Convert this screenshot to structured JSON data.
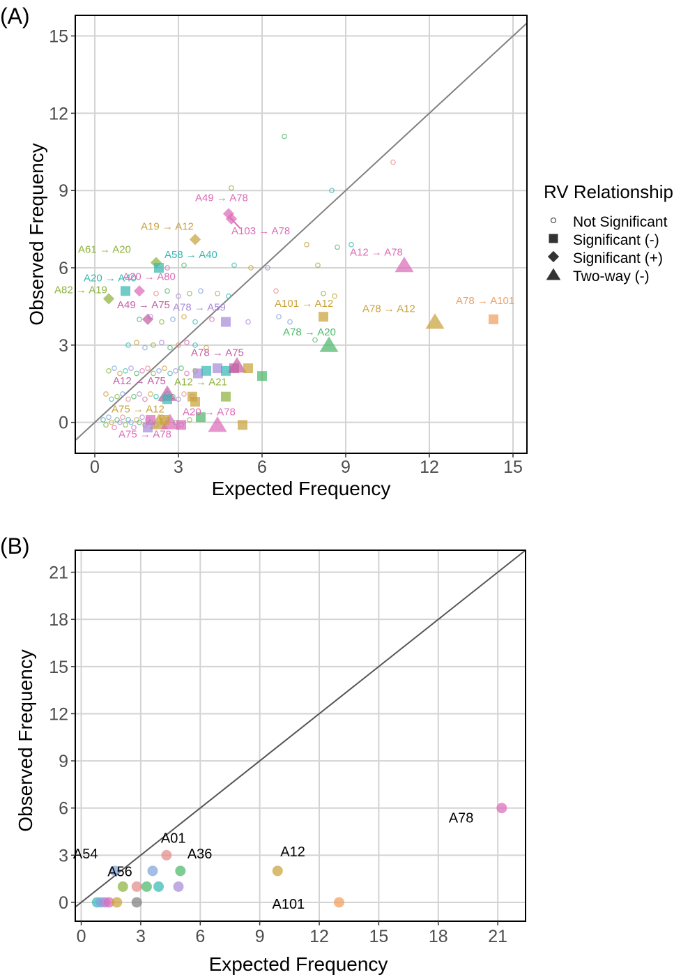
{
  "chart_data": [
    {
      "panel_tag": "(A)",
      "type": "scatter",
      "xlabel": "Expected Frequency",
      "ylabel": "Observed Frequency",
      "xlim": [
        -0.7,
        15.5
      ],
      "ylim": [
        -1.2,
        15.8
      ],
      "xticks": [
        0,
        3,
        6,
        9,
        12,
        15
      ],
      "yticks": [
        0,
        3,
        6,
        9,
        12,
        15
      ],
      "grid": true,
      "reference_line": "y = x",
      "legend": {
        "title": "RV Relationship",
        "position": "right",
        "entries": [
          {
            "label": "Not Significant",
            "shape": "open-circle"
          },
          {
            "label": "Significant (-)",
            "shape": "square"
          },
          {
            "label": "Significant (+)",
            "shape": "diamond"
          },
          {
            "label": "Two-way (-)",
            "shape": "triangle"
          }
        ]
      },
      "colors": [
        "#e58b8b",
        "#c9a23a",
        "#8db33c",
        "#4cb86a",
        "#37b8b3",
        "#7fa3dd",
        "#a98ad8",
        "#dd6bb8"
      ],
      "background_points": [
        [
          0.3,
          0.1,
          4
        ],
        [
          0.4,
          -0.1,
          2
        ],
        [
          0.5,
          0.2,
          5
        ],
        [
          0.6,
          0.0,
          1
        ],
        [
          0.7,
          -0.2,
          7
        ],
        [
          0.8,
          0.1,
          3
        ],
        [
          0.9,
          0.0,
          6
        ],
        [
          1.0,
          0.2,
          0
        ],
        [
          1.1,
          -0.1,
          2
        ],
        [
          1.2,
          0.1,
          4
        ],
        [
          1.3,
          0.0,
          5
        ],
        [
          1.4,
          -0.2,
          7
        ],
        [
          1.5,
          0.1,
          1
        ],
        [
          1.6,
          0.0,
          3
        ],
        [
          1.7,
          0.2,
          6
        ],
        [
          1.8,
          -0.1,
          0
        ],
        [
          1.9,
          0.1,
          2
        ],
        [
          2.0,
          0.0,
          4
        ],
        [
          2.2,
          -0.1,
          5
        ],
        [
          2.4,
          0.2,
          1
        ],
        [
          2.6,
          0.1,
          7
        ],
        [
          2.9,
          0.0,
          3
        ],
        [
          3.1,
          -0.1,
          6
        ],
        [
          3.4,
          0.1,
          2
        ],
        [
          0.4,
          1.1,
          1
        ],
        [
          0.6,
          0.9,
          4
        ],
        [
          0.8,
          1.0,
          2
        ],
        [
          1.0,
          1.1,
          5
        ],
        [
          1.2,
          0.9,
          0
        ],
        [
          1.4,
          1.0,
          3
        ],
        [
          1.6,
          1.1,
          6
        ],
        [
          1.8,
          0.9,
          7
        ],
        [
          2.0,
          1.1,
          1
        ],
        [
          2.2,
          1.0,
          4
        ],
        [
          2.4,
          0.9,
          2
        ],
        [
          2.6,
          1.1,
          5
        ],
        [
          2.8,
          1.0,
          3
        ],
        [
          3.0,
          0.9,
          6
        ],
        [
          3.2,
          1.1,
          0
        ],
        [
          3.5,
          1.0,
          7
        ],
        [
          0.5,
          2.0,
          2
        ],
        [
          0.7,
          2.1,
          5
        ],
        [
          0.9,
          1.9,
          1
        ],
        [
          1.1,
          2.0,
          4
        ],
        [
          1.3,
          2.1,
          6
        ],
        [
          1.5,
          1.9,
          3
        ],
        [
          1.7,
          2.0,
          7
        ],
        [
          1.9,
          2.1,
          0
        ],
        [
          2.1,
          1.9,
          2
        ],
        [
          2.3,
          2.0,
          5
        ],
        [
          2.5,
          2.1,
          1
        ],
        [
          2.7,
          1.9,
          4
        ],
        [
          2.9,
          2.0,
          6
        ],
        [
          3.1,
          2.1,
          3
        ],
        [
          3.3,
          1.9,
          7
        ],
        [
          3.6,
          2.0,
          2
        ],
        [
          1.2,
          3.0,
          4
        ],
        [
          1.5,
          3.1,
          1
        ],
        [
          1.8,
          2.9,
          5
        ],
        [
          2.1,
          3.0,
          2
        ],
        [
          2.4,
          3.1,
          6
        ],
        [
          2.7,
          2.9,
          3
        ],
        [
          3.0,
          3.0,
          0
        ],
        [
          3.3,
          3.1,
          7
        ],
        [
          3.6,
          3.0,
          4
        ],
        [
          4.0,
          2.9,
          1
        ],
        [
          1.6,
          4.0,
          3
        ],
        [
          2.0,
          4.1,
          6
        ],
        [
          2.4,
          3.9,
          2
        ],
        [
          2.8,
          4.0,
          5
        ],
        [
          3.2,
          4.1,
          1
        ],
        [
          3.6,
          3.9,
          4
        ],
        [
          4.2,
          4.0,
          7
        ],
        [
          2.2,
          5.0,
          0
        ],
        [
          2.6,
          5.1,
          3
        ],
        [
          3.0,
          4.9,
          6
        ],
        [
          3.4,
          5.0,
          2
        ],
        [
          3.8,
          5.1,
          5
        ],
        [
          4.4,
          5.0,
          1
        ],
        [
          4.8,
          4.9,
          4
        ],
        [
          2.6,
          6.0,
          7
        ],
        [
          3.2,
          6.1,
          3
        ],
        [
          5.0,
          6.1,
          4
        ],
        [
          5.6,
          6.0,
          1
        ],
        [
          6.2,
          6.0,
          6
        ],
        [
          6.6,
          4.1,
          5
        ],
        [
          4.9,
          9.1,
          2
        ],
        [
          6.8,
          11.1,
          3
        ],
        [
          10.7,
          10.1,
          0
        ],
        [
          8.5,
          9.0,
          4
        ],
        [
          8.0,
          6.1,
          2
        ],
        [
          7.6,
          6.9,
          1
        ],
        [
          8.7,
          6.8,
          3
        ],
        [
          9.2,
          6.9,
          4
        ],
        [
          6.5,
          5.1,
          0
        ],
        [
          8.2,
          5.0,
          2
        ],
        [
          8.6,
          4.9,
          1
        ],
        [
          7.0,
          3.9,
          5
        ],
        [
          7.9,
          3.2,
          3
        ],
        [
          5.5,
          3.9,
          6
        ]
      ],
      "series": [
        {
          "label": "A49 → A78",
          "x": 4.8,
          "y": 8.1,
          "shape": "diamond",
          "color": "#dd6bb8"
        },
        {
          "label": "A103 → A78",
          "x": 4.9,
          "y": 7.9,
          "shape": "diamond",
          "color": "#dd6bb8"
        },
        {
          "label": "A19 → A12",
          "x": 3.6,
          "y": 7.1,
          "shape": "diamond",
          "color": "#c9a23a"
        },
        {
          "label": "A61 → A20",
          "x": 2.2,
          "y": 6.2,
          "shape": "diamond",
          "color": "#8db33c"
        },
        {
          "label": "A58 → A40",
          "x": 2.3,
          "y": 6.0,
          "shape": "square",
          "color": "#37b8b3"
        },
        {
          "label": "A20 → A40",
          "x": 1.1,
          "y": 5.1,
          "shape": "square",
          "color": "#37b8b3"
        },
        {
          "label": "A20 → A80",
          "x": 1.6,
          "y": 5.1,
          "shape": "diamond",
          "color": "#dd6bb8"
        },
        {
          "label": "A82 → A19",
          "x": 0.5,
          "y": 4.8,
          "shape": "diamond",
          "color": "#8db33c"
        },
        {
          "label": "A49 → A75",
          "x": 1.9,
          "y": 4.0,
          "shape": "diamond",
          "color": "#c25fa5"
        },
        {
          "label": "A78 → A59",
          "x": 4.7,
          "y": 3.9,
          "shape": "square",
          "color": "#a98ad8"
        },
        {
          "label": "A12 → A78",
          "x": 11.1,
          "y": 6.1,
          "shape": "triangle",
          "color": "#dd6bb8"
        },
        {
          "label": "A101 → A12",
          "x": 8.2,
          "y": 4.1,
          "shape": "square",
          "color": "#c9a23a"
        },
        {
          "label": "A78 → A12",
          "x": 12.2,
          "y": 3.9,
          "shape": "triangle",
          "color": "#c9a23a"
        },
        {
          "label": "A78 → A101",
          "x": 14.3,
          "y": 4.0,
          "shape": "square",
          "color": "#f0a060"
        },
        {
          "label": "A78 → A20",
          "x": 8.4,
          "y": 3.0,
          "shape": "triangle",
          "color": "#4cb86a"
        },
        {
          "label": "A78 → A75",
          "x": 5.1,
          "y": 2.2,
          "shape": "triangle",
          "color": "#c25fa5"
        },
        {
          "label": "A12 → A21",
          "x": 4.7,
          "y": 1.0,
          "shape": "square",
          "color": "#8db33c"
        },
        {
          "label": "A12 → A75",
          "x": 2.6,
          "y": 1.1,
          "shape": "triangle",
          "color": "#c25fa5"
        },
        {
          "label": "A75 → A12",
          "x": 2.3,
          "y": 0.0,
          "shape": "triangle",
          "color": "#c9a23a"
        },
        {
          "label": "A20 → A78",
          "x": 4.4,
          "y": -0.1,
          "shape": "triangle",
          "color": "#dd6bb8"
        },
        {
          "label": "A75 → A78",
          "x": 2.7,
          "y": 0.0,
          "shape": "triangle",
          "color": "#dd6bb8"
        },
        {
          "label": "",
          "x": 3.7,
          "y": 1.9,
          "shape": "square",
          "color": "#a98ad8"
        },
        {
          "label": "",
          "x": 4.0,
          "y": 2.0,
          "shape": "square",
          "color": "#37b8b3"
        },
        {
          "label": "",
          "x": 4.4,
          "y": 2.1,
          "shape": "square",
          "color": "#a98ad8"
        },
        {
          "label": "",
          "x": 4.7,
          "y": 2.0,
          "shape": "square",
          "color": "#37b8b3"
        },
        {
          "label": "",
          "x": 5.0,
          "y": 2.1,
          "shape": "square",
          "color": "#c25fa5"
        },
        {
          "label": "",
          "x": 5.5,
          "y": 2.1,
          "shape": "square",
          "color": "#c9a23a"
        },
        {
          "label": "",
          "x": 6.0,
          "y": 1.8,
          "shape": "square",
          "color": "#4cb86a"
        },
        {
          "label": "",
          "x": 3.5,
          "y": 1.0,
          "shape": "square",
          "color": "#c9a23a"
        },
        {
          "label": "",
          "x": 2.6,
          "y": 0.9,
          "shape": "square",
          "color": "#37b8b3"
        },
        {
          "label": "",
          "x": 3.6,
          "y": 0.8,
          "shape": "square",
          "color": "#c9a23a"
        },
        {
          "label": "",
          "x": 3.8,
          "y": 0.2,
          "shape": "square",
          "color": "#4cb86a"
        },
        {
          "label": "",
          "x": 2.0,
          "y": 0.1,
          "shape": "square",
          "color": "#dd6bb8"
        },
        {
          "label": "",
          "x": 1.9,
          "y": -0.2,
          "shape": "square",
          "color": "#a98ad8"
        },
        {
          "label": "",
          "x": 3.1,
          "y": -0.1,
          "shape": "square",
          "color": "#dd6bb8"
        },
        {
          "label": "",
          "x": 5.3,
          "y": -0.1,
          "shape": "square",
          "color": "#c9a23a"
        },
        {
          "label": "",
          "x": 2.5,
          "y": 0.1,
          "shape": "square",
          "color": "#c9a23a"
        }
      ]
    },
    {
      "panel_tag": "(B)",
      "type": "scatter",
      "xlabel": "Expected Frequency",
      "ylabel": "Observed Frequency",
      "xlim": [
        -0.3,
        22.4
      ],
      "ylim": [
        -1.2,
        22.4
      ],
      "xticks": [
        0,
        3,
        6,
        9,
        12,
        15,
        18,
        21
      ],
      "yticks": [
        0,
        3,
        6,
        9,
        12,
        15,
        18,
        21
      ],
      "grid": true,
      "reference_line": "y = x",
      "points": [
        {
          "label": "A78",
          "x": 21.2,
          "y": 6.0,
          "color": "#dd6bb8"
        },
        {
          "label": "A12",
          "x": 9.9,
          "y": 2.0,
          "color": "#c9a23a"
        },
        {
          "label": "A101",
          "x": 13.0,
          "y": 0.0,
          "color": "#f0a060"
        },
        {
          "label": "A01",
          "x": 4.3,
          "y": 3.0,
          "color": "#e58b8b"
        },
        {
          "label": "A36",
          "x": 5.0,
          "y": 2.0,
          "color": "#4cb86a"
        },
        {
          "label": "A54",
          "x": 1.7,
          "y": 2.0,
          "color": "#7fa3dd"
        },
        {
          "label": "A56",
          "x": 2.8,
          "y": 1.0,
          "color": "#e58b8b"
        },
        {
          "label": "",
          "x": 3.6,
          "y": 2.0,
          "color": "#7fa3dd"
        },
        {
          "label": "",
          "x": 2.1,
          "y": 1.0,
          "color": "#8db33c"
        },
        {
          "label": "",
          "x": 3.3,
          "y": 1.0,
          "color": "#4cb86a"
        },
        {
          "label": "",
          "x": 3.9,
          "y": 1.0,
          "color": "#37b8b3"
        },
        {
          "label": "",
          "x": 4.9,
          "y": 1.0,
          "color": "#a98ad8"
        },
        {
          "label": "",
          "x": 0.8,
          "y": 0.0,
          "color": "#37b8b3"
        },
        {
          "label": "",
          "x": 1.0,
          "y": 0.0,
          "color": "#7fa3dd"
        },
        {
          "label": "",
          "x": 1.2,
          "y": 0.0,
          "color": "#a98ad8"
        },
        {
          "label": "",
          "x": 1.4,
          "y": 0.0,
          "color": "#dd6bb8"
        },
        {
          "label": "",
          "x": 1.8,
          "y": 0.0,
          "color": "#c9a23a"
        },
        {
          "label": "",
          "x": 2.8,
          "y": 0.0,
          "color": "#808080"
        }
      ]
    }
  ]
}
